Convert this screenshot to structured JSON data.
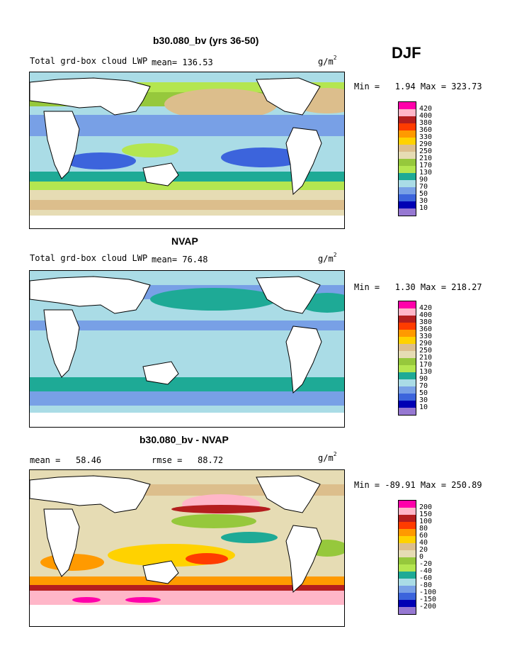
{
  "season": "DJF",
  "units_base": "g/m",
  "units_exp": "2",
  "panels": [
    {
      "title": "b30.080_bv (yrs 36-50)",
      "subtitle": "Total grd-box cloud LWP",
      "mean": "mean= 136.53",
      "stats": "Min =   1.94 Max = 323.73"
    },
    {
      "title": "NVAP",
      "subtitle": "Total grd-box cloud LWP",
      "mean": "mean= 76.48",
      "stats": "Min =   1.30 Max = 218.27"
    },
    {
      "title": "b30.080_bv - NVAP",
      "mean": "mean =   58.46",
      "rmse": "rmse =   88.72",
      "stats": "Min = -89.91 Max = 250.89"
    }
  ],
  "legend_abs": {
    "labels": [
      "420",
      "400",
      "380",
      "360",
      "330",
      "290",
      "250",
      "210",
      "170",
      "130",
      "90",
      "70",
      "50",
      "30",
      "10"
    ],
    "colors": [
      "#ff00aa",
      "#ffb6c8",
      "#b41e1e",
      "#ff3c00",
      "#ff9a00",
      "#ffd200",
      "#dcbe8c",
      "#e6dcb4",
      "#96c83c",
      "#b4e650",
      "#1eaa96",
      "#aadce6",
      "#78a0e6",
      "#3c64dc",
      "#0000b4",
      "#9678d2"
    ]
  },
  "legend_diff": {
    "labels": [
      "200",
      "150",
      "100",
      "80",
      "60",
      "40",
      "20",
      "0",
      "-20",
      "-40",
      "-60",
      "-80",
      "-100",
      "-150",
      "-200"
    ],
    "colors": [
      "#ff00aa",
      "#ffb6c8",
      "#b41e1e",
      "#ff3c00",
      "#ff9a00",
      "#ffd200",
      "#dcbe8c",
      "#e6dcb4",
      "#96c83c",
      "#b4e650",
      "#1eaa96",
      "#aadce6",
      "#78a0e6",
      "#3c64dc",
      "#0000b4",
      "#9678d2"
    ]
  }
}
